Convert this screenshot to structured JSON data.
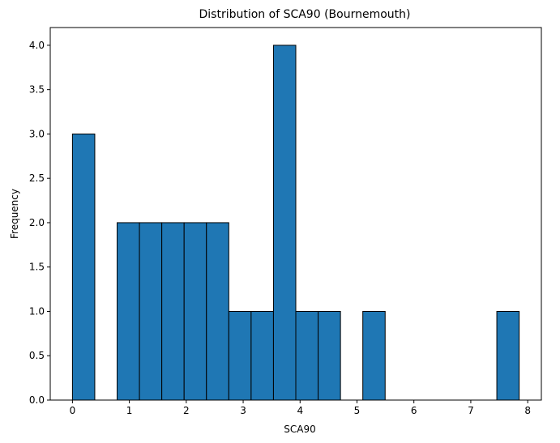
{
  "chart_data": {
    "type": "bar",
    "subtype": "histogram",
    "title": "Distribution of SCA90 (Bournemouth)",
    "xlabel": "SCA90",
    "ylabel": "Frequency",
    "xlim": [
      -0.39,
      8.24
    ],
    "ylim": [
      0,
      4.2
    ],
    "xticks": [
      0,
      1,
      2,
      3,
      4,
      5,
      6,
      7,
      8
    ],
    "yticks": [
      0.0,
      0.5,
      1.0,
      1.5,
      2.0,
      2.5,
      3.0,
      3.5,
      4.0
    ],
    "grid": false,
    "legend": false,
    "bar_color": "#1f77b4",
    "edge_color": "#000000",
    "bin_start": 0,
    "bin_width": 0.3925,
    "counts": [
      3,
      0,
      2,
      2,
      2,
      2,
      2,
      1,
      1,
      4,
      1,
      1,
      0,
      1,
      0,
      0,
      0,
      0,
      0,
      1
    ]
  }
}
